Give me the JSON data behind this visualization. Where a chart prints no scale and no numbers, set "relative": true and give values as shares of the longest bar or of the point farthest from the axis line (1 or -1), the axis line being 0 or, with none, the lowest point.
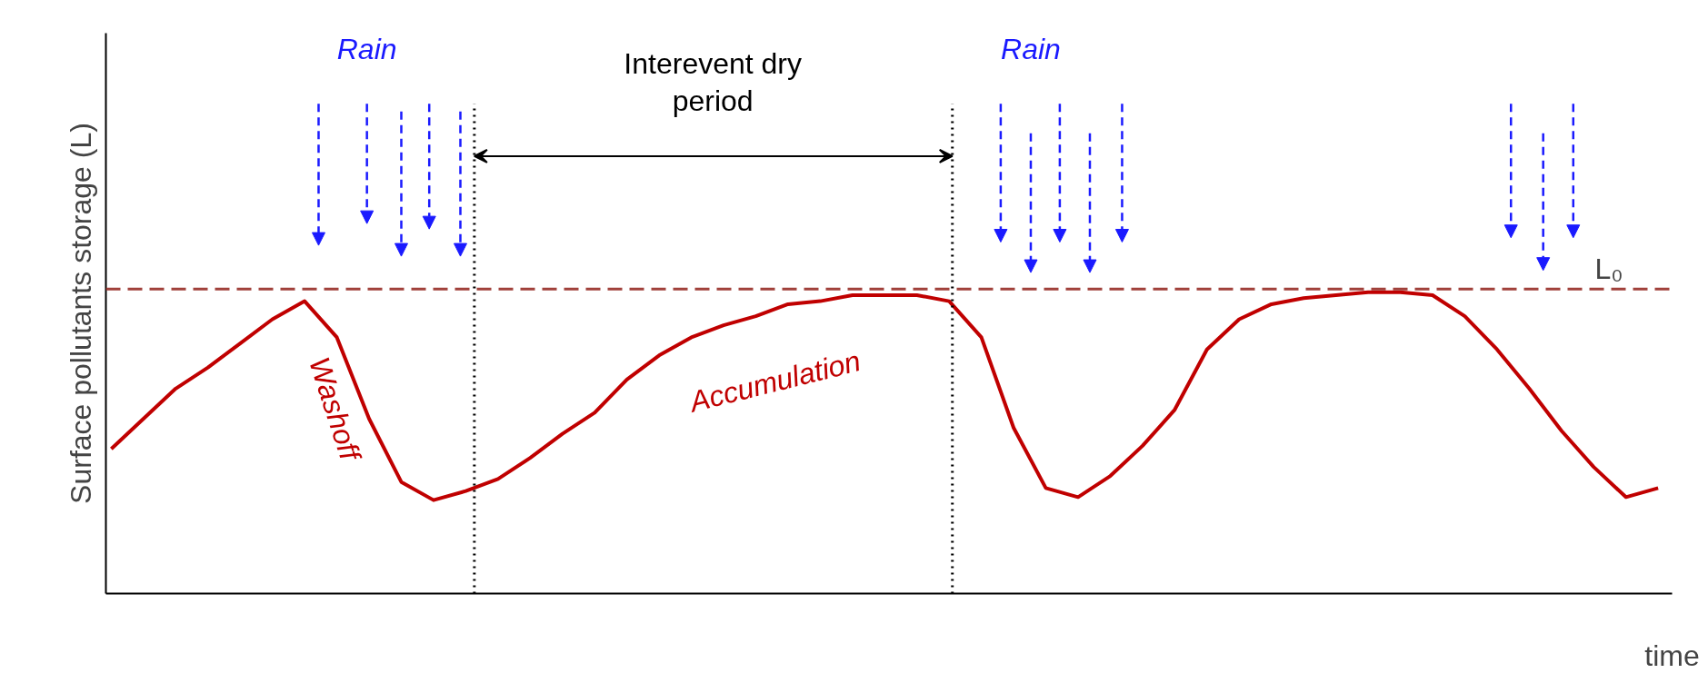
{
  "chart_data": {
    "type": "line",
    "relative": true,
    "xlabel": "time",
    "ylabel": "Surface pollutants storage (L)",
    "categories": [
      null,
      null,
      null,
      null,
      null,
      null,
      null,
      null,
      null,
      null,
      null,
      null,
      null,
      null,
      null,
      null,
      null,
      null,
      null,
      null,
      null,
      null,
      null,
      null,
      null,
      null,
      null,
      null,
      null,
      null,
      null,
      null,
      null,
      null,
      null,
      null,
      null,
      null,
      null,
      null,
      null,
      null,
      null,
      null,
      null,
      null,
      null,
      null,
      null
    ],
    "series": [
      {
        "color": "#c00000",
        "values": [
          0.48,
          0.58,
          0.68,
          0.75,
          0.83,
          0.91,
          0.97,
          0.85,
          0.58,
          0.37,
          0.31,
          0.34,
          0.38,
          0.45,
          0.53,
          0.6,
          0.71,
          0.79,
          0.85,
          0.89,
          0.92,
          0.96,
          0.97,
          0.99,
          0.99,
          0.99,
          0.97,
          0.85,
          0.55,
          0.35,
          0.32,
          0.39,
          0.49,
          0.61,
          0.81,
          0.91,
          0.96,
          0.98,
          0.99,
          1.0,
          1.0,
          0.99,
          0.92,
          0.81,
          0.68,
          0.54,
          0.42,
          0.32,
          0.35
        ]
      }
    ],
    "ref_lines": [
      {
        "axis": "y",
        "value": 1.01,
        "label": "L₀",
        "color": "#a0403a",
        "line_style": "dashed"
      }
    ],
    "annotations": [
      "Rain",
      "Rain",
      "Washoff",
      "Accumulation",
      "Interevent dry\nperiod"
    ]
  }
}
